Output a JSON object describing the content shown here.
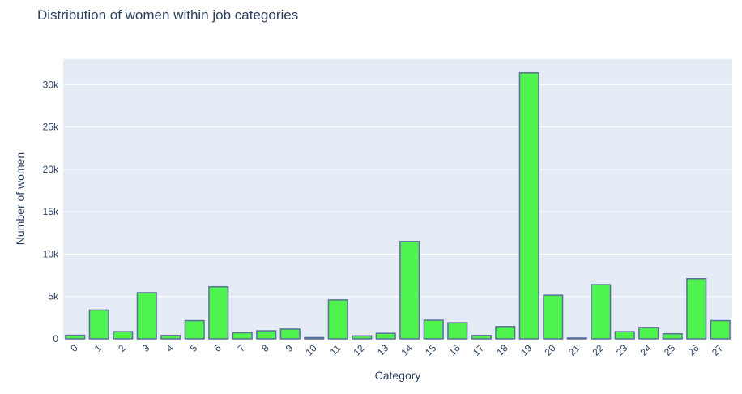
{
  "chart_data": {
    "type": "bar",
    "title": "Distribution of women within job categories",
    "xlabel": "Category",
    "ylabel": "Number of women",
    "categories": [
      "0",
      "1",
      "2",
      "3",
      "4",
      "5",
      "6",
      "7",
      "8",
      "9",
      "10",
      "11",
      "12",
      "13",
      "14",
      "15",
      "16",
      "17",
      "18",
      "19",
      "20",
      "21",
      "22",
      "23",
      "24",
      "25",
      "26",
      "27"
    ],
    "values": [
      420,
      3400,
      850,
      5450,
      400,
      2150,
      6150,
      720,
      950,
      1150,
      150,
      4600,
      350,
      650,
      11500,
      2200,
      1900,
      400,
      1450,
      31400,
      5150,
      100,
      6400,
      850,
      1350,
      600,
      7100,
      2150
    ],
    "ylim": [
      0,
      33000
    ],
    "yticks": [
      0,
      5000,
      10000,
      15000,
      20000,
      25000,
      30000
    ],
    "ytick_labels": [
      "0",
      "5k",
      "10k",
      "15k",
      "20k",
      "25k",
      "30k"
    ],
    "grid": true,
    "colors": {
      "bar_fill": "#4ef34e",
      "bar_stroke": "#5a6f9a",
      "plot_bg": "#e5ecf6",
      "grid": "#ffffff",
      "text": "#2a3f5f"
    }
  }
}
